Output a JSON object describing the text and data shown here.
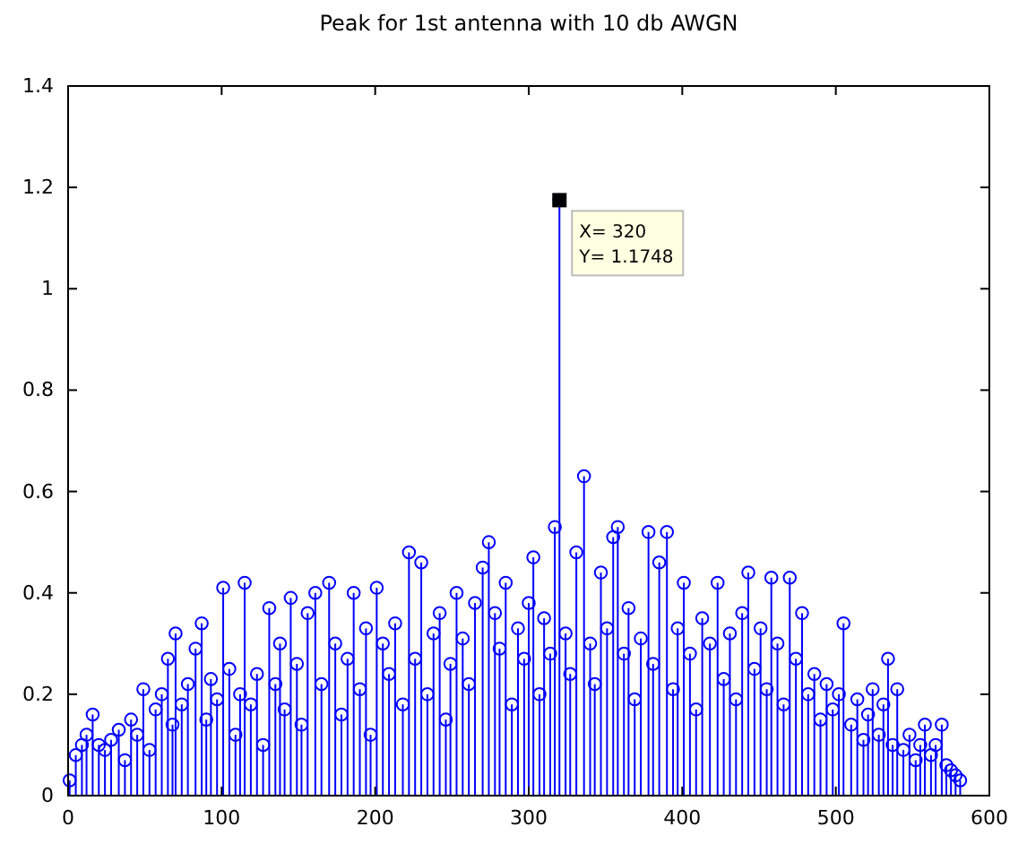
{
  "chart_data": {
    "type": "lollipop",
    "title": "Peak for 1st antenna with 10 db AWGN",
    "x": [
      1,
      5,
      9,
      12,
      16,
      20,
      24,
      28,
      33,
      37,
      41,
      45,
      49,
      53,
      57,
      61,
      65,
      68,
      70,
      74,
      78,
      83,
      87,
      90,
      93,
      97,
      101,
      105,
      109,
      112,
      115,
      119,
      123,
      127,
      131,
      135,
      138,
      141,
      145,
      149,
      152,
      156,
      161,
      165,
      170,
      174,
      178,
      182,
      186,
      190,
      194,
      197,
      201,
      205,
      209,
      213,
      218,
      222,
      226,
      230,
      234,
      238,
      242,
      246,
      249,
      253,
      257,
      261,
      265,
      270,
      274,
      278,
      281,
      285,
      289,
      293,
      297,
      300,
      303,
      307,
      310,
      314,
      317,
      320,
      324,
      327,
      331,
      336,
      340,
      343,
      347,
      351,
      355,
      358,
      362,
      365,
      369,
      373,
      378,
      381,
      385,
      390,
      394,
      397,
      401,
      405,
      409,
      413,
      418,
      423,
      427,
      431,
      435,
      439,
      443,
      447,
      451,
      455,
      458,
      462,
      466,
      470,
      474,
      478,
      482,
      486,
      490,
      494,
      498,
      502,
      505,
      510,
      514,
      518,
      521,
      524,
      528,
      531,
      534,
      537,
      540,
      544,
      548,
      552,
      555,
      558,
      562,
      565,
      569,
      572,
      575,
      578,
      581
    ],
    "values": [
      0.03,
      0.08,
      0.1,
      0.12,
      0.16,
      0.1,
      0.09,
      0.11,
      0.13,
      0.07,
      0.15,
      0.12,
      0.21,
      0.09,
      0.17,
      0.2,
      0.27,
      0.14,
      0.32,
      0.18,
      0.22,
      0.29,
      0.34,
      0.15,
      0.23,
      0.19,
      0.41,
      0.25,
      0.12,
      0.2,
      0.42,
      0.18,
      0.24,
      0.1,
      0.37,
      0.22,
      0.3,
      0.17,
      0.39,
      0.26,
      0.14,
      0.36,
      0.4,
      0.22,
      0.42,
      0.3,
      0.16,
      0.27,
      0.4,
      0.21,
      0.33,
      0.12,
      0.41,
      0.3,
      0.24,
      0.34,
      0.18,
      0.48,
      0.27,
      0.46,
      0.2,
      0.32,
      0.36,
      0.15,
      0.26,
      0.4,
      0.31,
      0.22,
      0.38,
      0.45,
      0.5,
      0.36,
      0.29,
      0.42,
      0.18,
      0.33,
      0.27,
      0.38,
      0.47,
      0.2,
      0.35,
      0.28,
      0.53,
      1.1748,
      0.32,
      0.24,
      0.48,
      0.63,
      0.3,
      0.22,
      0.44,
      0.33,
      0.51,
      0.53,
      0.28,
      0.37,
      0.19,
      0.31,
      0.52,
      0.26,
      0.46,
      0.52,
      0.21,
      0.33,
      0.42,
      0.28,
      0.17,
      0.35,
      0.3,
      0.42,
      0.23,
      0.32,
      0.19,
      0.36,
      0.44,
      0.25,
      0.33,
      0.21,
      0.43,
      0.3,
      0.18,
      0.43,
      0.27,
      0.36,
      0.2,
      0.24,
      0.15,
      0.22,
      0.17,
      0.2,
      0.34,
      0.14,
      0.19,
      0.11,
      0.16,
      0.21,
      0.12,
      0.18,
      0.27,
      0.1,
      0.21,
      0.09,
      0.12,
      0.07,
      0.1,
      0.14,
      0.08,
      0.1,
      0.14,
      0.06,
      0.05,
      0.04,
      0.03
    ],
    "color": "#0000ff",
    "marker": "circle",
    "xlim": [
      0,
      600
    ],
    "xticks": [
      0,
      100,
      200,
      300,
      400,
      500,
      600
    ],
    "ylim": [
      0,
      1.4
    ],
    "yticks": [
      0,
      0.2,
      0.4,
      0.6,
      0.8,
      1,
      1.2,
      1.4
    ],
    "grid": false,
    "annotations": [
      {
        "text": "X= 320\nY= 1.1748",
        "x": 320,
        "y": 1.1748
      }
    ]
  }
}
